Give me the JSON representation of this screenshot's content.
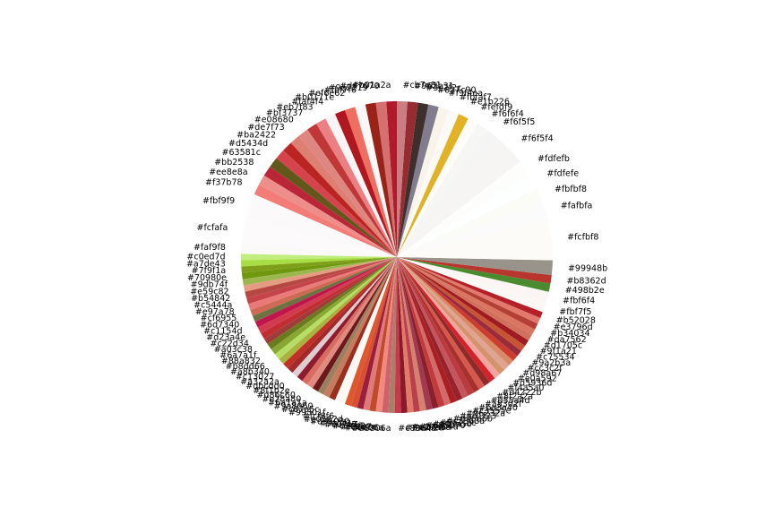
{
  "chart_data": {
    "type": "pie",
    "title": "",
    "legend": "none",
    "start_angle_deg": 90,
    "direction": "counterclockwise",
    "slices": [
      {
        "label": "#b01a2a",
        "color": "#b01a2a",
        "value": 1
      },
      {
        "label": "#d47070",
        "color": "#d47070",
        "value": 1
      },
      {
        "label": "#9a2219",
        "color": "#9a2219",
        "value": 1
      },
      {
        "label": "#fbf7f6",
        "color": "#fbf7f6",
        "value": 1
      },
      {
        "label": "#ef6e62",
        "color": "#ef6e62",
        "value": 1
      },
      {
        "label": "#b0171e",
        "color": "#b0171e",
        "value": 1
      },
      {
        "label": "#faf4f4",
        "color": "#faf4f4",
        "value": 1
      },
      {
        "label": "#eb7f83",
        "color": "#eb7f83",
        "value": 1
      },
      {
        "label": "#bf3737",
        "color": "#bf3737",
        "value": 1
      },
      {
        "label": "#e08680",
        "color": "#e08680",
        "value": 1
      },
      {
        "label": "#de7f73",
        "color": "#de7f73",
        "value": 1
      },
      {
        "label": "#ba2422",
        "color": "#ba2422",
        "value": 1
      },
      {
        "label": "#d5434d",
        "color": "#d5434d",
        "value": 1
      },
      {
        "label": "#63581c",
        "color": "#63581c",
        "value": 1
      },
      {
        "label": "#bb2538",
        "color": "#bb2538",
        "value": 1
      },
      {
        "label": "#ee8e8a",
        "color": "#ee8e8a",
        "value": 1
      },
      {
        "label": "#f37b78",
        "color": "#f37b78",
        "value": 1
      },
      {
        "label": "#fbf9f9",
        "color": "#fbf9f9",
        "value": 2.4
      },
      {
        "label": "#fcfafa",
        "color": "#fcfafa",
        "value": 2.4
      },
      {
        "label": "#faf9f8",
        "color": "#faf9f8",
        "value": 1
      },
      {
        "label": "#c0ed7d",
        "color": "#c0ed7d",
        "value": 0.6
      },
      {
        "label": "#a7de43",
        "color": "#a7de43",
        "value": 0.6
      },
      {
        "label": "#7f9f1a",
        "color": "#7f9f1a",
        "value": 0.6
      },
      {
        "label": "#70980e",
        "color": "#70980e",
        "value": 0.6
      },
      {
        "label": "#9db74f",
        "color": "#9db74f",
        "value": 0.6
      },
      {
        "label": "#e59c82",
        "color": "#e59c82",
        "value": 0.6
      },
      {
        "label": "#b54842",
        "color": "#b54842",
        "value": 0.6
      },
      {
        "label": "#c5444a",
        "color": "#c5444a",
        "value": 0.6
      },
      {
        "label": "#e97a78",
        "color": "#e97a78",
        "value": 0.6
      },
      {
        "label": "#cf6955",
        "color": "#cf6955",
        "value": 0.6
      },
      {
        "label": "#6d7340",
        "color": "#6d7340",
        "value": 0.6
      },
      {
        "label": "#c1154d",
        "color": "#c1154d",
        "value": 0.6
      },
      {
        "label": "#d23a4e",
        "color": "#d23a4e",
        "value": 0.6
      },
      {
        "label": "#c22d34",
        "color": "#c22d34",
        "value": 0.6
      },
      {
        "label": "#a03c38",
        "color": "#a03c38",
        "value": 0.6
      },
      {
        "label": "#6a7a1f",
        "color": "#6a7a1f",
        "value": 0.6
      },
      {
        "label": "#88a832",
        "color": "#88a832",
        "value": 0.6
      },
      {
        "label": "#b8dd66",
        "color": "#b8dd66",
        "value": 0.6
      },
      {
        "label": "#a8b340",
        "color": "#a8b340",
        "value": 0.6
      },
      {
        "label": "#c13027",
        "color": "#c13027",
        "value": 0.6
      },
      {
        "label": "#a32a2a",
        "color": "#a32a2a",
        "value": 0.6
      },
      {
        "label": "#dbcdd0",
        "color": "#dbcdd0",
        "value": 0.6
      },
      {
        "label": "#8f1b2e",
        "color": "#8f1b2e",
        "value": 0.6
      },
      {
        "label": "#d86c60",
        "color": "#d86c60",
        "value": 0.6
      },
      {
        "label": "#e28a80",
        "color": "#e28a80",
        "value": 0.6
      },
      {
        "label": "#6a1a1a",
        "color": "#6a1a1a",
        "value": 0.6
      },
      {
        "label": "#9a8060",
        "color": "#9a8060",
        "value": 0.6
      },
      {
        "label": "#c87a5c",
        "color": "#c87a5c",
        "value": 0.6
      },
      {
        "label": "#99301f",
        "color": "#99301f",
        "value": 0.6
      },
      {
        "label": "#fcf8f6",
        "color": "#fcf8f6",
        "value": 1
      },
      {
        "label": "#e0562d",
        "color": "#e0562d",
        "value": 0.6
      },
      {
        "label": "#d95030",
        "color": "#d95030",
        "value": 0.6
      },
      {
        "label": "#9a1f3a",
        "color": "#9a1f3a",
        "value": 0.6
      },
      {
        "label": "#e07a7a",
        "color": "#e07a7a",
        "value": 0.6
      },
      {
        "label": "#c14a2c",
        "color": "#c14a2c",
        "value": 0.6
      },
      {
        "label": "#f08a7e",
        "color": "#f08a7e",
        "value": 0.6
      },
      {
        "label": "#d0606a",
        "color": "#d0606a",
        "value": 0.6
      },
      {
        "label": "#a8806a",
        "color": "#a8806a",
        "value": 0.6
      },
      {
        "label": "#c83a4a",
        "color": "#c83a4a",
        "value": 0.6
      },
      {
        "label": "#8a1a2a",
        "color": "#8a1a2a",
        "value": 0.6
      },
      {
        "label": "#e27a6a",
        "color": "#e27a6a",
        "value": 0.6
      },
      {
        "label": "#b8404a",
        "color": "#b8404a",
        "value": 0.6
      },
      {
        "label": "#d88070",
        "color": "#d88070",
        "value": 0.6
      },
      {
        "label": "#a03a50",
        "color": "#a03a50",
        "value": 0.6
      },
      {
        "label": "#8a1f2e",
        "color": "#8a1f2e",
        "value": 0.6
      },
      {
        "label": "#c33a3a",
        "color": "#c33a3a",
        "value": 0.6
      },
      {
        "label": "#d36b6b",
        "color": "#d36b6b",
        "value": 0.6
      },
      {
        "label": "#ab1f23",
        "color": "#ab1f23",
        "value": 0.6
      },
      {
        "label": "#96232a",
        "color": "#96232a",
        "value": 0.6
      },
      {
        "label": "#c3555e",
        "color": "#c3555e",
        "value": 0.6
      },
      {
        "label": "#ba3a40",
        "color": "#ba3a40",
        "value": 0.6
      },
      {
        "label": "#a8302f",
        "color": "#a8302f",
        "value": 0.6
      },
      {
        "label": "#d55a4d",
        "color": "#d55a4d",
        "value": 0.6
      },
      {
        "label": "#8f2a2a",
        "color": "#8f2a2a",
        "value": 0.6
      },
      {
        "label": "#d4222b",
        "color": "#d4222b",
        "value": 0.6
      },
      {
        "label": "#f4a5a0",
        "color": "#f4a5a0",
        "value": 0.6
      },
      {
        "label": "#d5936d",
        "color": "#d5936d",
        "value": 0.6
      },
      {
        "label": "#e0a592",
        "color": "#e0a592",
        "value": 0.6
      },
      {
        "label": "#d98a67",
        "color": "#d98a67",
        "value": 0.6
      },
      {
        "label": "#cc3c2f",
        "color": "#cc3c2f",
        "value": 0.6
      },
      {
        "label": "#9a2b3a",
        "color": "#9a2b3a",
        "value": 0.6
      },
      {
        "label": "#c75534",
        "color": "#c75534",
        "value": 0.6
      },
      {
        "label": "#9f1a21",
        "color": "#9f1a21",
        "value": 0.6
      },
      {
        "label": "#d1705c",
        "color": "#d1705c",
        "value": 0.6
      },
      {
        "label": "#da7562",
        "color": "#da7562",
        "value": 0.6
      },
      {
        "label": "#b34034",
        "color": "#b34034",
        "value": 0.6
      },
      {
        "label": "#e3796d",
        "color": "#e3796d",
        "value": 0.6
      },
      {
        "label": "#b52028",
        "color": "#b52028",
        "value": 0.6
      },
      {
        "label": "#fbf7f5",
        "color": "#fbf7f5",
        "value": 1
      },
      {
        "label": "#fbf6f4",
        "color": "#fbf6f4",
        "value": 1
      },
      {
        "label": "#498b2e",
        "color": "#498b2e",
        "value": 0.8
      },
      {
        "label": "#b8362d",
        "color": "#b8362d",
        "value": 0.8
      },
      {
        "label": "#99948b",
        "color": "#99948b",
        "value": 1.4
      },
      {
        "label": "#fcfbf8",
        "color": "#fcfbf8",
        "value": 4
      },
      {
        "label": "#fafbfa",
        "color": "#fafbfa",
        "value": 1.5
      },
      {
        "label": "#fbfbf8",
        "color": "#fbfbf8",
        "value": 1.5
      },
      {
        "label": "#fdfefe",
        "color": "#fdfefe",
        "value": 1.5
      },
      {
        "label": "#fdfefb",
        "color": "#fdfefb",
        "value": 1.5
      },
      {
        "label": "#f6f5f4",
        "color": "#f6f5f4",
        "value": 3
      },
      {
        "label": "#f6f5f5",
        "color": "#f6f5f5",
        "value": 1.2
      },
      {
        "label": "#f6f6f4",
        "color": "#f6f6f4",
        "value": 1.2
      },
      {
        "label": "#fefdf9",
        "color": "#fefdf9",
        "value": 1
      },
      {
        "label": "#e1b226",
        "color": "#e1b226",
        "value": 1
      },
      {
        "label": "#fbfaf7",
        "color": "#fbfaf7",
        "value": 1
      },
      {
        "label": "#f9f4ea",
        "color": "#f9f4ea",
        "value": 1
      },
      {
        "label": "#827c90",
        "color": "#827c90",
        "value": 1
      },
      {
        "label": "#3c2f2c",
        "color": "#3c2f2c",
        "value": 1
      },
      {
        "label": "#962b31",
        "color": "#962b31",
        "value": 1
      },
      {
        "label": "#cb7e81",
        "color": "#cb7e81",
        "value": 1
      }
    ]
  }
}
